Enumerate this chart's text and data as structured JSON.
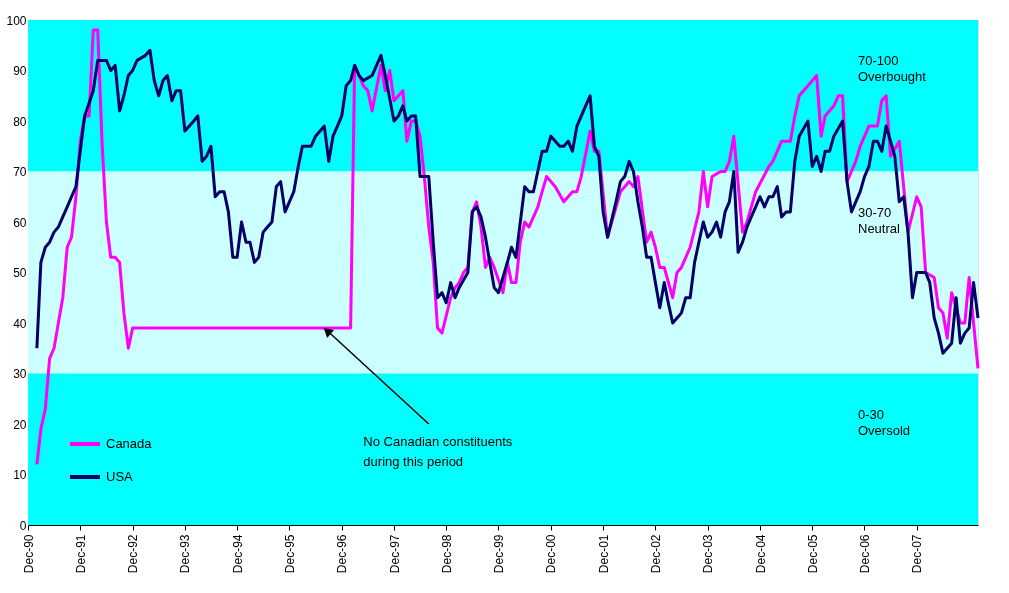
{
  "chart_data": {
    "type": "line",
    "xlim": [
      "1990-12",
      "2009-02"
    ],
    "xticks": [
      {
        "value": "1990-12",
        "label": "Dec-90"
      },
      {
        "value": "1991-12",
        "label": "Dec-91"
      },
      {
        "value": "1992-12",
        "label": "Dec-92"
      },
      {
        "value": "1993-12",
        "label": "Dec-93"
      },
      {
        "value": "1994-12",
        "label": "Dec-94"
      },
      {
        "value": "1995-12",
        "label": "Dec-95"
      },
      {
        "value": "1996-12",
        "label": "Dec-96"
      },
      {
        "value": "1997-12",
        "label": "Dec-97"
      },
      {
        "value": "1998-12",
        "label": "Dec-98"
      },
      {
        "value": "1999-12",
        "label": "Dec-99"
      },
      {
        "value": "2000-12",
        "label": "Dec-00"
      },
      {
        "value": "2001-12",
        "label": "Dec-01"
      },
      {
        "value": "2002-12",
        "label": "Dec-02"
      },
      {
        "value": "2003-12",
        "label": "Dec-03"
      },
      {
        "value": "2004-12",
        "label": "Dec-04"
      },
      {
        "value": "2005-12",
        "label": "Dec-05"
      },
      {
        "value": "2006-12",
        "label": "Dec-06"
      },
      {
        "value": "2007-12",
        "label": "Dec-07"
      }
    ],
    "ylim": [
      0,
      100
    ],
    "yticks": [
      0,
      10,
      20,
      30,
      40,
      50,
      60,
      70,
      80,
      90,
      100
    ],
    "grid": false,
    "legend": "bottom left",
    "line_style": "solid",
    "marker": "none",
    "bands": [
      {
        "axis": "y",
        "from": 70,
        "to": 100,
        "label": "70-100 Overbought",
        "color": "#00ffff"
      },
      {
        "axis": "y",
        "from": 30,
        "to": 70,
        "label": "30-70 Neutral",
        "color": "#ccffff"
      },
      {
        "axis": "y",
        "from": 0,
        "to": 30,
        "label": "0-30 Oversold",
        "color": "#00ffff"
      }
    ],
    "annotations": [
      {
        "text": "No Canadian constituents during this period",
        "x": "1996-08",
        "y": 39
      }
    ],
    "series": [
      {
        "name": "Canada",
        "color": "#ff00ff",
        "x": [
          "1991-02",
          "1991-03",
          "1991-04",
          "1991-05",
          "1991-06",
          "1991-07",
          "1991-08",
          "1991-09",
          "1991-10",
          "1991-11",
          "1991-12",
          "1992-01",
          "1992-02",
          "1992-03",
          "1992-04",
          "1992-05",
          "1992-06",
          "1992-07",
          "1992-08",
          "1992-09",
          "1992-10",
          "1992-11",
          "1992-12",
          "1997-02",
          "1997-03",
          "1997-05",
          "1997-06",
          "1997-07",
          "1997-09",
          "1997-10",
          "1997-11",
          "1997-12",
          "1998-02",
          "1998-03",
          "1998-04",
          "1998-05",
          "1998-06",
          "1998-07",
          "1998-08",
          "1998-09",
          "1998-10",
          "1998-11",
          "1999-01",
          "1999-02",
          "1999-03",
          "1999-04",
          "1999-05",
          "1999-06",
          "1999-07",
          "1999-08",
          "1999-09",
          "1999-10",
          "1999-11",
          "2000-01",
          "2000-02",
          "2000-03",
          "2000-04",
          "2000-05",
          "2000-06",
          "2000-07",
          "2000-09",
          "2000-10",
          "2000-11",
          "2001-01",
          "2001-03",
          "2001-05",
          "2001-06",
          "2001-07",
          "2001-09",
          "2001-10",
          "2001-11",
          "2002-01",
          "2002-04",
          "2002-06",
          "2002-07",
          "2002-08",
          "2002-10",
          "2002-11",
          "2002-12",
          "2003-01",
          "2003-02",
          "2003-04",
          "2003-05",
          "2003-06",
          "2003-08",
          "2003-10",
          "2003-11",
          "2003-12",
          "2004-01",
          "2004-03",
          "2004-04",
          "2004-05",
          "2004-06",
          "2004-08",
          "2004-09",
          "2004-11",
          "2005-02",
          "2005-03",
          "2005-05",
          "2005-07",
          "2005-08",
          "2005-09",
          "2005-11",
          "2006-01",
          "2006-02",
          "2006-03",
          "2006-05",
          "2006-06",
          "2006-07",
          "2006-08",
          "2006-10",
          "2006-11",
          "2007-01",
          "2007-03",
          "2007-04",
          "2007-05",
          "2007-06",
          "2007-08",
          "2007-10",
          "2007-12",
          "2008-01",
          "2008-02",
          "2008-04",
          "2008-05",
          "2008-06",
          "2008-07",
          "2008-08",
          "2008-10",
          "2008-11",
          "2008-12",
          "2009-02"
        ],
        "values": [
          12,
          19,
          23,
          33,
          35,
          40,
          45,
          55,
          57,
          65,
          76,
          81,
          81,
          98,
          98,
          76,
          60,
          53,
          53,
          52,
          42,
          35,
          39,
          39,
          91,
          87,
          86,
          82,
          91,
          86,
          90,
          84,
          86,
          76,
          80,
          80,
          77,
          69,
          59,
          52,
          39,
          38,
          45,
          47,
          48,
          50,
          51,
          62,
          64,
          59,
          51,
          53,
          51,
          46,
          52,
          48,
          48,
          56,
          60,
          59,
          63,
          66,
          69,
          67,
          64,
          66,
          66,
          69,
          78,
          74,
          74,
          57,
          66,
          68,
          67,
          69,
          56,
          58,
          55,
          51,
          51,
          45,
          50,
          51,
          55,
          62,
          70,
          63,
          69,
          70,
          70,
          72,
          77,
          58,
          60,
          66,
          71,
          72,
          76,
          76,
          81,
          85,
          87,
          89,
          77,
          81,
          83,
          85,
          85,
          68,
          72,
          75,
          79,
          79,
          84,
          85,
          73,
          76,
          58,
          65,
          63,
          50,
          49,
          43,
          42,
          37,
          46,
          40,
          40,
          49,
          31
        ]
      },
      {
        "name": "USA",
        "color": "#000066",
        "x": [
          "1991-02",
          "1991-03",
          "1991-04",
          "1991-05",
          "1991-06",
          "1991-07",
          "1991-08",
          "1991-09",
          "1991-10",
          "1991-11",
          "1991-12",
          "1992-01",
          "1992-03",
          "1992-04",
          "1992-05",
          "1992-06",
          "1992-07",
          "1992-08",
          "1992-09",
          "1992-10",
          "1992-11",
          "1992-12",
          "1993-01",
          "1993-03",
          "1993-04",
          "1993-05",
          "1993-06",
          "1993-07",
          "1993-08",
          "1993-09",
          "1993-10",
          "1993-11",
          "1993-12",
          "1994-01",
          "1994-02",
          "1994-03",
          "1994-04",
          "1994-05",
          "1994-06",
          "1994-07",
          "1994-08",
          "1994-09",
          "1994-10",
          "1994-11",
          "1994-12",
          "1995-01",
          "1995-02",
          "1995-03",
          "1995-04",
          "1995-05",
          "1995-06",
          "1995-07",
          "1995-08",
          "1995-09",
          "1995-10",
          "1995-11",
          "1996-01",
          "1996-02",
          "1996-03",
          "1996-04",
          "1996-05",
          "1996-06",
          "1996-08",
          "1996-09",
          "1996-10",
          "1996-11",
          "1996-12",
          "1997-01",
          "1997-02",
          "1997-03",
          "1997-04",
          "1997-05",
          "1997-07",
          "1997-09",
          "1997-10",
          "1997-12",
          "1998-01",
          "1998-02",
          "1998-03",
          "1998-04",
          "1998-05",
          "1998-06",
          "1998-07",
          "1998-08",
          "1998-09",
          "1998-10",
          "1998-11",
          "1998-12",
          "1999-01",
          "1999-02",
          "1999-03",
          "1999-05",
          "1999-06",
          "1999-07",
          "1999-08",
          "1999-09",
          "1999-10",
          "1999-11",
          "1999-12",
          "2000-02",
          "2000-03",
          "2000-04",
          "2000-06",
          "2000-07",
          "2000-08",
          "2000-10",
          "2000-11",
          "2000-12",
          "2001-01",
          "2001-02",
          "2001-03",
          "2001-04",
          "2001-05",
          "2001-06",
          "2001-08",
          "2001-09",
          "2001-10",
          "2001-11",
          "2001-12",
          "2002-01",
          "2002-03",
          "2002-04",
          "2002-05",
          "2002-06",
          "2002-07",
          "2002-08",
          "2002-09",
          "2002-10",
          "2002-11",
          "2002-12",
          "2003-01",
          "2003-02",
          "2003-03",
          "2003-04",
          "2003-06",
          "2003-07",
          "2003-08",
          "2003-09",
          "2003-10",
          "2003-11",
          "2003-12",
          "2004-01",
          "2004-02",
          "2004-03",
          "2004-04",
          "2004-05",
          "2004-06",
          "2004-07",
          "2004-08",
          "2004-09",
          "2004-10",
          "2004-11",
          "2004-12",
          "2005-01",
          "2005-02",
          "2005-03",
          "2005-04",
          "2005-05",
          "2005-06",
          "2005-07",
          "2005-08",
          "2005-09",
          "2005-11",
          "2005-12",
          "2006-01",
          "2006-02",
          "2006-03",
          "2006-04",
          "2006-05",
          "2006-07",
          "2006-08",
          "2006-09",
          "2006-10",
          "2006-11",
          "2006-12",
          "2007-01",
          "2007-02",
          "2007-03",
          "2007-04",
          "2007-05",
          "2007-06",
          "2007-07",
          "2007-08",
          "2007-09",
          "2007-10",
          "2007-11",
          "2007-12",
          "2008-01",
          "2008-02",
          "2008-03",
          "2008-04",
          "2008-05",
          "2008-06",
          "2008-07",
          "2008-08",
          "2008-09",
          "2008-10",
          "2008-11",
          "2008-12",
          "2009-01",
          "2009-02"
        ],
        "values": [
          35,
          52,
          55,
          56,
          58,
          59,
          61,
          63,
          65,
          67,
          74,
          81,
          86,
          92,
          92,
          92,
          90,
          91,
          82,
          85,
          89,
          90,
          92,
          93,
          94,
          88,
          85,
          88,
          89,
          84,
          86,
          86,
          78,
          79,
          80,
          81,
          72,
          73,
          75,
          65,
          66,
          66,
          62,
          53,
          53,
          60,
          56,
          56,
          52,
          53,
          58,
          59,
          60,
          67,
          68,
          62,
          66,
          71,
          75,
          75,
          75,
          77,
          79,
          72,
          77,
          79,
          81,
          87,
          88,
          91,
          89,
          88,
          89,
          93,
          89,
          80,
          81,
          83,
          80,
          81,
          81,
          69,
          69,
          69,
          56,
          45,
          46,
          44,
          48,
          45,
          47,
          50,
          62,
          63,
          61,
          57,
          52,
          47,
          46,
          52,
          55,
          53,
          67,
          66,
          66,
          74,
          74,
          77,
          76,
          75,
          75,
          76,
          74,
          79,
          83,
          85,
          75,
          73,
          62,
          57,
          64,
          68,
          69,
          72,
          70,
          64,
          59,
          53,
          53,
          48,
          43,
          48,
          44,
          40,
          42,
          45,
          45,
          52,
          56,
          60,
          57,
          58,
          60,
          57,
          62,
          64,
          70,
          54,
          56,
          59,
          61,
          63,
          65,
          63,
          65,
          65,
          67,
          61,
          62,
          62,
          72,
          77,
          80,
          71,
          73,
          70,
          74,
          74,
          77,
          80,
          68,
          62,
          64,
          66,
          69,
          71,
          76,
          76,
          74,
          79,
          76,
          73,
          64,
          65,
          58,
          45,
          50,
          50,
          50,
          48,
          41,
          38,
          34,
          35,
          36,
          45,
          36,
          38,
          39,
          48,
          41
        ]
      }
    ]
  }
}
